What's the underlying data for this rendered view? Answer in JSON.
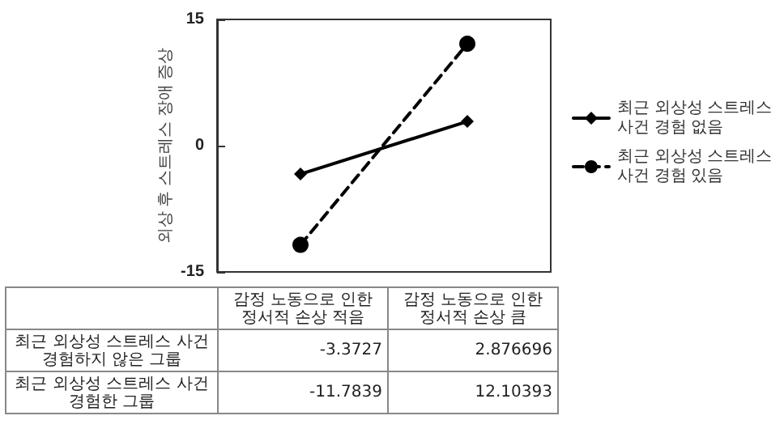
{
  "chart_data": {
    "type": "line",
    "ylabel": "외상 후 스트레스 장애 증상",
    "categories": [
      "감정 노동으로 인한 정서적 손상 적음",
      "감정 노동으로 인한 정서적 손상 큼"
    ],
    "series": [
      {
        "name": "최근 외상성 스트레스 사건 경험 없음",
        "color": "#000000",
        "marker": "diamond",
        "line_style": "solid",
        "values": [
          -3.3727,
          2.876696
        ]
      },
      {
        "name": "최근 외상성 스트레스 사건 경험 있음",
        "color": "#000000",
        "marker": "circle",
        "line_style": "dashed",
        "values": [
          -11.7839,
          12.10393
        ]
      }
    ],
    "ylim": [
      -15,
      15
    ],
    "yticks": [
      -15,
      0,
      15
    ],
    "grid": false,
    "legend": "right",
    "tick_labels": "y",
    "data_labels": true,
    "annotations": [
      "최근 외상성 스트레스 사건 경험하지 않은 그룹",
      "최근 외상성 스트레스 사건 경험한 그룹"
    ]
  }
}
